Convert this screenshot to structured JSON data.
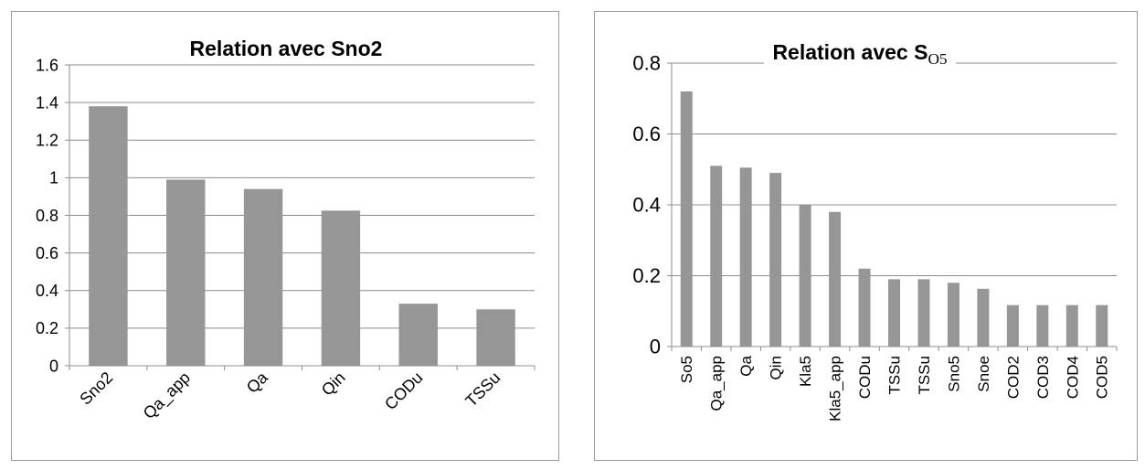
{
  "chart_data": [
    {
      "type": "bar",
      "title": "Relation avec Sno2",
      "categories": [
        "Sno2",
        "Qa_app",
        "Qa",
        "Qin",
        "CODu",
        "TSSu"
      ],
      "values": [
        1.38,
        0.99,
        0.94,
        0.825,
        0.33,
        0.3
      ],
      "ylim": [
        0,
        1.6
      ],
      "yticks": [
        "0",
        "0.2",
        "0.4",
        "0.6",
        "0.8",
        "1",
        "1.2",
        "1.4",
        "1.6"
      ],
      "xlabel": "",
      "ylabel": "",
      "grid": true,
      "color": "#969696"
    },
    {
      "type": "bar",
      "title": "Relation avec S",
      "title_subscript": "O5",
      "categories": [
        "So5",
        "Qa_app",
        "Qa",
        "Qin",
        "Kla5",
        "Kla5_app",
        "CODu",
        "TSSu",
        "TSSu",
        "Sno5",
        "Snoe",
        "COD2",
        "COD3",
        "COD4",
        "COD5"
      ],
      "values": [
        0.72,
        0.51,
        0.505,
        0.49,
        0.4,
        0.38,
        0.22,
        0.19,
        0.19,
        0.18,
        0.163,
        0.117,
        0.117,
        0.117,
        0.117
      ],
      "ylim": [
        0,
        0.8
      ],
      "yticks": [
        "0",
        "0.2",
        "0.4",
        "0.6",
        "0.8"
      ],
      "xlabel": "",
      "ylabel": "",
      "grid": true,
      "color": "#969696"
    }
  ]
}
